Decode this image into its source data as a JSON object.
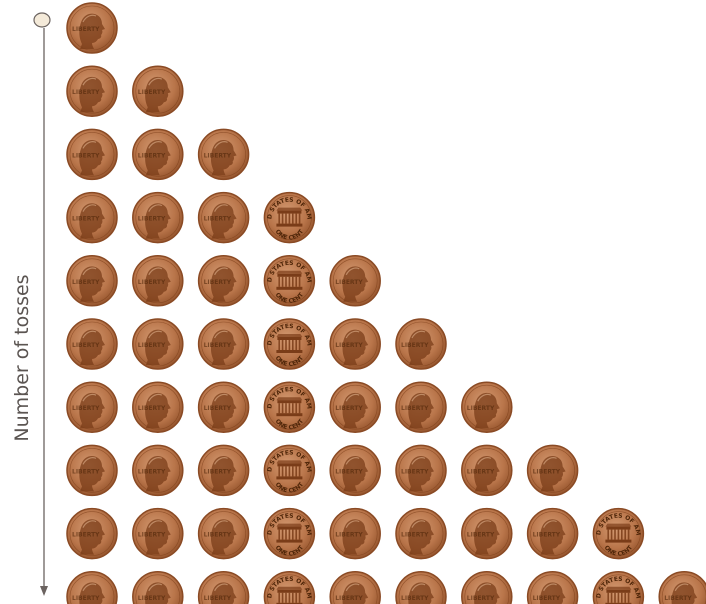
{
  "axis": {
    "label": "Number of tosses"
  },
  "coin_faces": {
    "heads": "lincoln-portrait",
    "tails": "lincoln-memorial"
  },
  "colors": {
    "coin_face": "#b9754a",
    "coin_rim": "#8a4a24",
    "coin_shade": "#7a3c18",
    "axis_line": "#6b6360",
    "start_marker_fill": "#f4ead9"
  },
  "rows": [
    [
      "H"
    ],
    [
      "H",
      "H"
    ],
    [
      "H",
      "H",
      "H"
    ],
    [
      "H",
      "H",
      "H",
      "T"
    ],
    [
      "H",
      "H",
      "H",
      "T",
      "H"
    ],
    [
      "H",
      "H",
      "H",
      "T",
      "H",
      "H"
    ],
    [
      "H",
      "H",
      "H",
      "T",
      "H",
      "H",
      "H"
    ],
    [
      "H",
      "H",
      "H",
      "T",
      "H",
      "H",
      "H",
      "H"
    ],
    [
      "H",
      "H",
      "H",
      "T",
      "H",
      "H",
      "H",
      "H",
      "T"
    ],
    [
      "H",
      "H",
      "H",
      "T",
      "H",
      "H",
      "H",
      "H",
      "T",
      "H"
    ]
  ],
  "tails_rim_text": {
    "top": "UNITED STATES OF AMERICA",
    "bottom": "ONE CENT"
  }
}
